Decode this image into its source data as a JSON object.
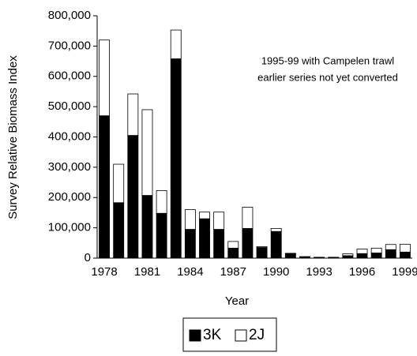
{
  "chart_data": {
    "type": "stacked_bar",
    "y_label": "Survey Relative Biomass Index",
    "x_label": "Year",
    "annotations": [
      "1995-99 with Campelen trawl",
      "earlier series not yet converted"
    ],
    "categories": [
      "1978",
      null,
      null,
      "1981",
      null,
      null,
      "1984",
      null,
      null,
      "1987",
      null,
      null,
      "1990",
      null,
      null,
      "1993",
      null,
      null,
      "1996",
      null,
      null,
      "1999"
    ],
    "series": [
      {
        "name": "3K",
        "color": "#000000",
        "values": [
          470000,
          183000,
          405000,
          207000,
          148000,
          658000,
          95000,
          130000,
          95000,
          33000,
          98000,
          35000,
          88000,
          14000,
          3000,
          2000,
          2000,
          8000,
          15000,
          17000,
          28000,
          20000
        ]
      },
      {
        "name": "2J",
        "color": "#ffffff",
        "values": [
          250000,
          127000,
          137000,
          283000,
          75000,
          95000,
          65000,
          22000,
          57000,
          22000,
          70000,
          3000,
          10000,
          2000,
          2000,
          1000,
          1000,
          6000,
          15000,
          16000,
          17000,
          26000
        ]
      }
    ],
    "ylim": [
      0,
      800000
    ],
    "yticks": [
      0,
      {
        "value": 100000,
        "label": "100,000"
      },
      {
        "value": 200000,
        "label": "200,000"
      },
      {
        "value": 300000,
        "label": "300,000"
      },
      {
        "value": 400000,
        "label": "400,000"
      },
      {
        "value": 500000,
        "label": "500,000"
      },
      {
        "value": 600000,
        "label": "600,000"
      },
      {
        "value": 700000,
        "label": "700,000"
      },
      {
        "value": 800000,
        "label": "800,000"
      }
    ],
    "legend": "bottom"
  }
}
